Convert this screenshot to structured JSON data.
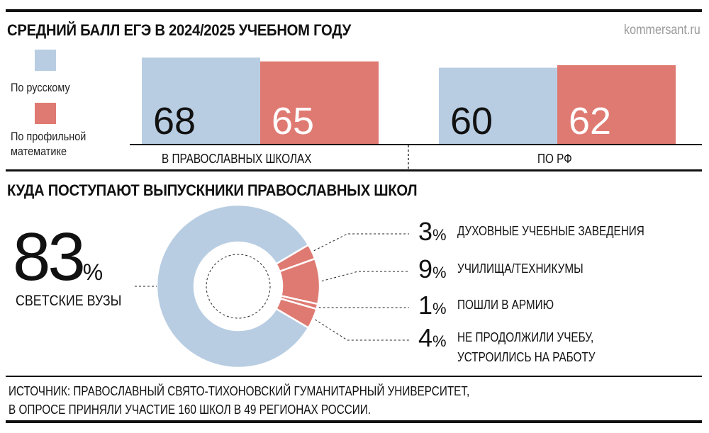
{
  "source_site": "kommersant.ru",
  "colors": {
    "russian": "#b8cde2",
    "math": "#df7a72"
  },
  "chart_data": [
    {
      "type": "bar",
      "title": "СРЕДНИЙ БАЛЛ ЕГЭ В 2024/2025 УЧЕБНОМ ГОДУ",
      "categories": [
        "В ПРАВОСЛАВНЫХ ШКОЛАХ",
        "ПО РФ"
      ],
      "series": [
        {
          "name": "По русскому",
          "values": [
            68,
            60
          ],
          "color": "#b8cde2"
        },
        {
          "name": "По профильной математике",
          "values": [
            65,
            62
          ],
          "color": "#df7a72"
        }
      ],
      "legend_placement": "left",
      "grid": false
    },
    {
      "type": "pie",
      "title": "КУДА ПОСТУПАЮТ ВЫПУСКНИКИ ПРАВОСЛАВНЫХ ШКОЛ",
      "donut": true,
      "slices": [
        {
          "label": "СВЕТСКИЕ ВУЗЫ",
          "value": 83,
          "color": "#b8cde2"
        },
        {
          "label": "ДУХОВНЫЕ УЧЕБНЫЕ ЗАВЕДЕНИЯ",
          "value": 3,
          "color": "#df7a72"
        },
        {
          "label": "УЧИЛИЩА/ТЕХНИКУМЫ",
          "value": 9,
          "color": "#df7a72"
        },
        {
          "label": "ПОШЛИ В АРМИЮ",
          "value": 1,
          "color": "#df7a72"
        },
        {
          "label": "НЕ ПРОДОЛЖИЛИ УЧЕБУ,",
          "label2": "УСТРОИЛИСЬ НА РАБОТУ",
          "value": 4,
          "color": "#df7a72"
        }
      ],
      "percent_sign": "%"
    }
  ],
  "footer": {
    "line1": "ИСТОЧНИК: ПРАВОСЛАВНЫЙ СВЯТО-ТИХОНОВСКИЙ ГУМАНИТАРНЫЙ УНИВЕРСИТЕТ,",
    "line2": "В ОПРОСЕ ПРИНЯЛИ УЧАСТИЕ 160 ШКОЛ В 49 РЕГИОНАХ РОССИИ."
  }
}
